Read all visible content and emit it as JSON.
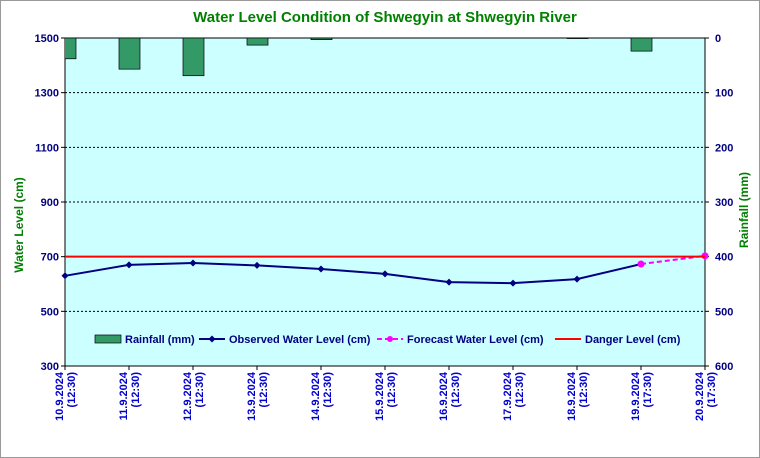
{
  "chart_data": {
    "type": "combo",
    "title": "Water Level Condition of Shwegyin at Shwegyin River",
    "ylabel": "Water Level (cm)",
    "y2label": "Rainfall (mm)",
    "categories": [
      "10.9.2024 (12:30)",
      "11.9.2024 (12:30)",
      "12.9.2024 (12:30)",
      "13.9.2024 (12:30)",
      "14.9.2024 (12:30)",
      "15.9.2024 (12:30)",
      "16.9.2024 (12:30)",
      "17.9.2024 (12:30)",
      "18.9.2024 (12:30)",
      "19.9.2024 (17:30)",
      "20.9.2024 (17:30)"
    ],
    "ylim": [
      300,
      1500
    ],
    "yticks": [
      300,
      500,
      700,
      900,
      1100,
      1300,
      1500
    ],
    "y2lim": [
      600,
      0
    ],
    "y2ticks": [
      0,
      100,
      200,
      300,
      400,
      500,
      600
    ],
    "grid": true,
    "series": [
      {
        "name": "Rainfall (mm)",
        "type": "bar",
        "axis": "y2",
        "color": "#339966",
        "values": [
          38,
          57,
          69,
          13,
          3,
          0,
          0,
          0,
          1,
          24,
          0
        ]
      },
      {
        "name": "Observed Water Level (cm)",
        "type": "line",
        "color": "#000080",
        "values": [
          630,
          670,
          677,
          668,
          655,
          637,
          607,
          603,
          618,
          673,
          null
        ]
      },
      {
        "name": "Forecast Water Level (cm)",
        "type": "dashed",
        "color": "#ff00ff",
        "values": [
          null,
          null,
          null,
          null,
          null,
          null,
          null,
          null,
          null,
          673,
          703
        ]
      },
      {
        "name": "Danger Level (cm)",
        "type": "plain",
        "color": "#ff0000",
        "values": [
          700,
          700,
          700,
          700,
          700,
          700,
          700,
          700,
          700,
          700,
          700
        ]
      }
    ]
  }
}
